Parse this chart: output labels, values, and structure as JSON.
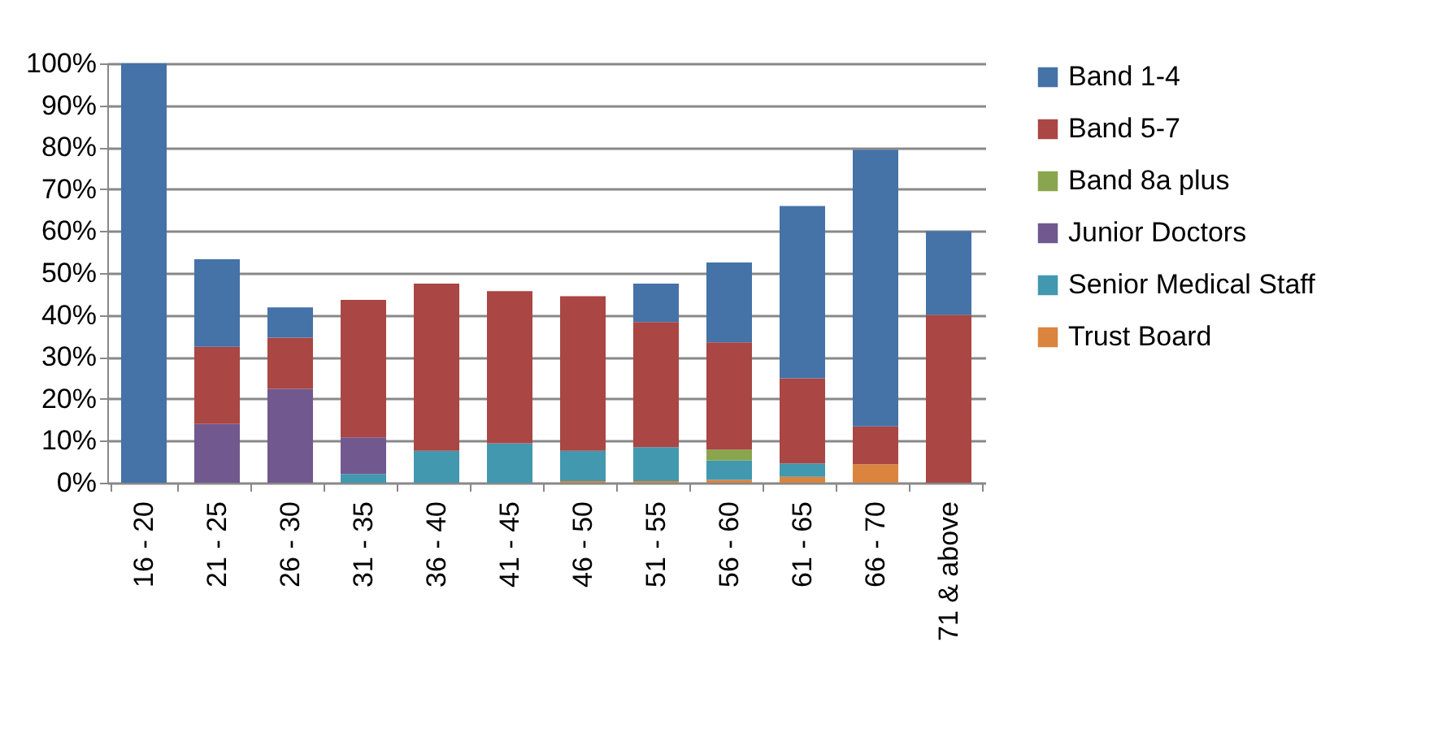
{
  "chart_data": {
    "type": "bar",
    "stacked": true,
    "categories": [
      "16 - 20",
      "21 - 25",
      "26 - 30",
      "31 - 35",
      "36 - 40",
      "41 - 45",
      "46 - 50",
      "51 - 55",
      "56 - 60",
      "61 - 65",
      "66 - 70",
      "71 & above"
    ],
    "series": [
      {
        "name": "Trust Board",
        "color": "#db843d",
        "values": [
          null,
          null,
          null,
          null,
          null,
          null,
          0.4,
          0.4,
          0.7,
          1.4,
          4.4,
          null
        ]
      },
      {
        "name": "Senior Medical Staff",
        "color": "#4198af",
        "values": [
          null,
          null,
          null,
          2.1,
          7.6,
          9.4,
          7.2,
          8.1,
          4.6,
          3.2,
          null,
          null
        ]
      },
      {
        "name": "Junior Doctors",
        "color": "#71588f",
        "values": [
          null,
          14,
          22.4,
          8.7,
          null,
          null,
          null,
          null,
          null,
          null,
          null,
          null
        ]
      },
      {
        "name": "Band 8a plus",
        "color": "#89a54e",
        "values": [
          null,
          null,
          null,
          null,
          null,
          null,
          null,
          null,
          2.6,
          null,
          null,
          null
        ]
      },
      {
        "name": "Band 5-7",
        "color": "#aa4643",
        "values": [
          null,
          18.4,
          12.2,
          32.8,
          39.9,
          36.3,
          36.9,
          29.8,
          25.6,
          20.3,
          9,
          40
        ]
      },
      {
        "name": "Band 1-4",
        "color": "#4572a7",
        "values": [
          100,
          20.9,
          7.2,
          null,
          null,
          null,
          null,
          9.2,
          19,
          41.1,
          66,
          20
        ]
      }
    ],
    "ylim": [
      0,
      100
    ],
    "yticks": [
      {
        "value": 0,
        "label": "0%"
      },
      {
        "value": 10,
        "label": "10%"
      },
      {
        "value": 20,
        "label": "20%"
      },
      {
        "value": 30,
        "label": "30%"
      },
      {
        "value": 40,
        "label": "40%"
      },
      {
        "value": 50,
        "label": "50%"
      },
      {
        "value": 60,
        "label": "60%"
      },
      {
        "value": 70,
        "label": "70%"
      },
      {
        "value": 80,
        "label": "80%"
      },
      {
        "value": 90,
        "label": "90%"
      },
      {
        "value": 100,
        "label": "100%"
      }
    ],
    "grid": "y",
    "legend": "right"
  }
}
